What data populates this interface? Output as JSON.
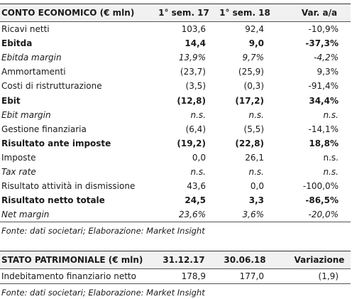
{
  "table1": {
    "header": [
      "CONTO ECONOMICO (€ mln)",
      "1° sem. 17",
      "1° sem. 18",
      "Var. a/a"
    ],
    "rows": [
      {
        "cells": [
          "Ricavi netti",
          "103,6",
          "92,4",
          "-10,9%"
        ],
        "style": "normal"
      },
      {
        "cells": [
          "Ebitda",
          "14,4",
          "9,0",
          "-37,3%"
        ],
        "style": "bold"
      },
      {
        "cells": [
          "Ebitda margin",
          "13,9%",
          "9,7%",
          "-4,2%"
        ],
        "style": "italic"
      },
      {
        "cells": [
          "Ammortamenti",
          "(23,7)",
          "(25,9)",
          "9,3%"
        ],
        "style": "normal"
      },
      {
        "cells": [
          "Costi di ristrutturazione",
          "(3,5)",
          "(0,3)",
          "-91,4%"
        ],
        "style": "normal"
      },
      {
        "cells": [
          "Ebit",
          "(12,8)",
          "(17,2)",
          "34,4%"
        ],
        "style": "bold"
      },
      {
        "cells": [
          "Ebit margin",
          "n.s.",
          "n.s.",
          "n.s."
        ],
        "style": "italic"
      },
      {
        "cells": [
          "Gestione finanziaria",
          "(6,4)",
          "(5,5)",
          "-14,1%"
        ],
        "style": "normal"
      },
      {
        "cells": [
          "Risultato ante imposte",
          "(19,2)",
          "(22,8)",
          "18,8%"
        ],
        "style": "bold"
      },
      {
        "cells": [
          "Imposte",
          "0,0",
          "26,1",
          "n.s."
        ],
        "style": "normal"
      },
      {
        "cells": [
          "Tax rate",
          "n.s.",
          "n.s.",
          "n.s."
        ],
        "style": "italic"
      },
      {
        "cells": [
          "Risultato attività in dismissione",
          "43,6",
          "0,0",
          "-100,0%"
        ],
        "style": "normal"
      },
      {
        "cells": [
          "Risultato netto totale",
          "24,5",
          "3,3",
          "-86,5%"
        ],
        "style": "bold"
      },
      {
        "cells": [
          "Net margin",
          "23,6%",
          "3,6%",
          "-20,0%"
        ],
        "style": "italic"
      }
    ],
    "source": "Fonte: dati societari; Elaborazione: Market Insight"
  },
  "table2": {
    "header": [
      "STATO PATRIMONIALE (€ mln)",
      "31.12.17",
      "30.06.18",
      "Variazione"
    ],
    "rows": [
      {
        "cells": [
          "Indebitamento finanziario netto",
          "178,9",
          "177,0",
          "(1,9)"
        ],
        "style": "normal"
      }
    ],
    "source": "Fonte: dati societari; Elaborazione: Market Insight"
  }
}
